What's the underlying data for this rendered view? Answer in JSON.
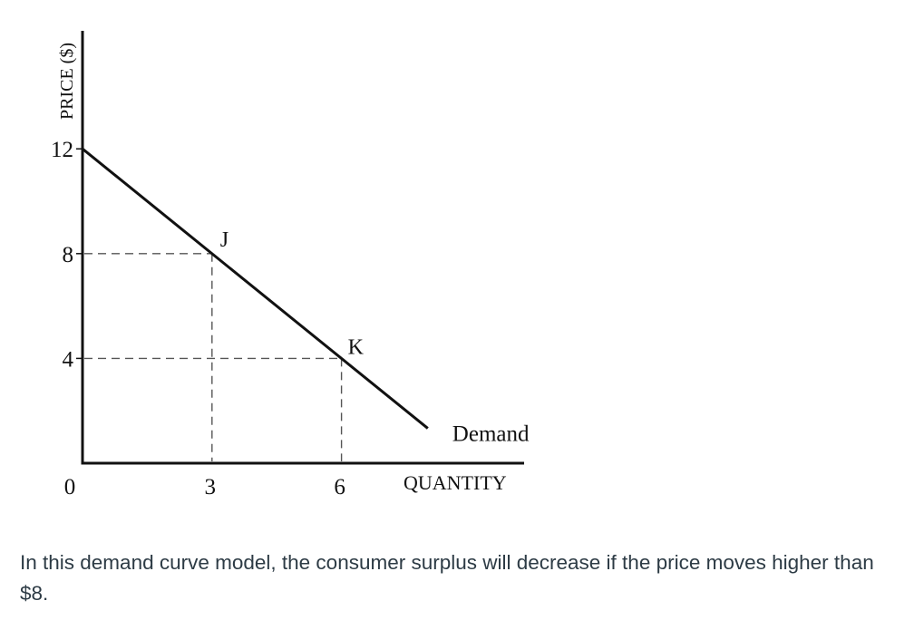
{
  "chart_data": {
    "type": "line",
    "xlabel": "QUANTITY",
    "ylabel": "PRICE ($)",
    "xlim": [
      0,
      8.0
    ],
    "ylim": [
      0,
      13.2
    ],
    "x_ticks": [
      "0",
      "3",
      "6"
    ],
    "y_ticks": [
      "4",
      "8",
      "12"
    ],
    "series": [
      {
        "name": "Demand",
        "x": [
          0,
          8.0
        ],
        "y": [
          12,
          1.33
        ]
      }
    ],
    "points": [
      {
        "label": "J",
        "x": 3,
        "y": 8
      },
      {
        "label": "K",
        "x": 6,
        "y": 4
      }
    ]
  },
  "caption": "In this demand curve model, the consumer surplus will decrease if the price moves higher than $8."
}
